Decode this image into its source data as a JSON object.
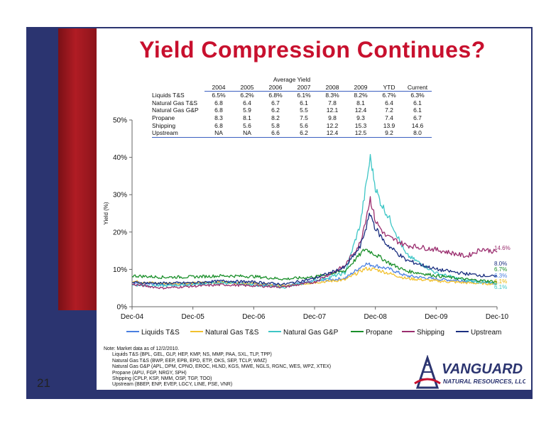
{
  "slide": {
    "title": "Yield Compression Continues?",
    "page_number": "21"
  },
  "colors": {
    "frame": "#2b3470",
    "title": "#c8102e",
    "accent_bar": "#b01c24"
  },
  "yield_table": {
    "caption": "Average Yield",
    "columns": [
      "2004",
      "2005",
      "2006",
      "2007",
      "2008",
      "2009",
      "YTD",
      "Current"
    ],
    "rows": [
      {
        "label": "Liquids T&S",
        "values": [
          "6.5%",
          "6.2%",
          "6.8%",
          "6.1%",
          "8.3%",
          "8.2%",
          "6.7%",
          "6.3%"
        ]
      },
      {
        "label": "Natural  Gas T&S",
        "values": [
          "6.8",
          "6.4",
          "6.7",
          "6.1",
          "7.8",
          "8.1",
          "6.4",
          "6.1"
        ]
      },
      {
        "label": "Natural Gas G&P",
        "values": [
          "6.8",
          "5.9",
          "6.2",
          "5.5",
          "12.1",
          "12.4",
          "7.2",
          "6.1"
        ]
      },
      {
        "label": "Propane",
        "values": [
          "8.3",
          "8.1",
          "8.2",
          "7.5",
          "9.8",
          "9.3",
          "7.4",
          "6.7"
        ]
      },
      {
        "label": "Shipping",
        "values": [
          "6.8",
          "5.6",
          "5.8",
          "5.6",
          "12.2",
          "15.3",
          "13.9",
          "14.6"
        ]
      },
      {
        "label": "Upstream",
        "values": [
          "NA",
          "NA",
          "6.6",
          "6.2",
          "12.4",
          "12.5",
          "9.2",
          "8.0"
        ]
      }
    ]
  },
  "chart_data": {
    "type": "line",
    "ylabel": "Yield (%)",
    "xlabel": "",
    "ylim": [
      0,
      50
    ],
    "yticks": [
      "0%",
      "10%",
      "20%",
      "30%",
      "40%",
      "50%"
    ],
    "xlim": [
      "2004-12",
      "2010-12"
    ],
    "xticks": [
      "Dec-04",
      "Dec-05",
      "Dec-06",
      "Dec-07",
      "Dec-08",
      "Dec-09",
      "Dec-10"
    ],
    "grid": false,
    "legend_position": "bottom",
    "end_labels": [
      "14.6%",
      "8.0%",
      "6.7%",
      "6.3%",
      "6.1%",
      "6.1%"
    ],
    "series": [
      {
        "name": "Liquids T&S",
        "color": "#4a7fe0",
        "end_label_color": "#4a7fe0",
        "points": [
          [
            "2004-12",
            6.5
          ],
          [
            "2005-06",
            6.0
          ],
          [
            "2005-12",
            6.2
          ],
          [
            "2006-06",
            6.6
          ],
          [
            "2006-12",
            6.3
          ],
          [
            "2007-06",
            5.7
          ],
          [
            "2007-12",
            6.8
          ],
          [
            "2008-06",
            7.6
          ],
          [
            "2008-10",
            11.5
          ],
          [
            "2008-12",
            11.0
          ],
          [
            "2009-03",
            10.0
          ],
          [
            "2009-06",
            8.3
          ],
          [
            "2009-12",
            7.4
          ],
          [
            "2010-06",
            6.9
          ],
          [
            "2010-12",
            6.3
          ]
        ]
      },
      {
        "name": "Natural  Gas T&S",
        "color": "#f2c12e",
        "end_label_color": "#e8b400",
        "points": [
          [
            "2004-12",
            6.8
          ],
          [
            "2005-06",
            6.2
          ],
          [
            "2005-12",
            6.3
          ],
          [
            "2006-06",
            6.6
          ],
          [
            "2006-12",
            6.2
          ],
          [
            "2007-06",
            5.5
          ],
          [
            "2007-12",
            6.5
          ],
          [
            "2008-06",
            7.2
          ],
          [
            "2008-10",
            10.2
          ],
          [
            "2008-12",
            10.0
          ],
          [
            "2009-03",
            8.8
          ],
          [
            "2009-06",
            7.6
          ],
          [
            "2009-12",
            6.9
          ],
          [
            "2010-06",
            6.4
          ],
          [
            "2010-12",
            6.1
          ]
        ]
      },
      {
        "name": "Natural Gas G&P",
        "color": "#3ec6c6",
        "end_label_color": "#3ec6c6",
        "points": [
          [
            "2004-12",
            5.8
          ],
          [
            "2005-06",
            5.6
          ],
          [
            "2005-12",
            5.9
          ],
          [
            "2006-06",
            6.4
          ],
          [
            "2006-12",
            5.8
          ],
          [
            "2007-06",
            5.2
          ],
          [
            "2007-12",
            6.9
          ],
          [
            "2008-06",
            9.0
          ],
          [
            "2008-09",
            22.0
          ],
          [
            "2008-11",
            40.0
          ],
          [
            "2008-12",
            32.0
          ],
          [
            "2009-01",
            28.0
          ],
          [
            "2009-03",
            23.0
          ],
          [
            "2009-06",
            14.0
          ],
          [
            "2009-12",
            9.0
          ],
          [
            "2010-06",
            7.0
          ],
          [
            "2010-12",
            6.1
          ]
        ]
      },
      {
        "name": "Propane",
        "color": "#1a8f2a",
        "end_label_color": "#1a8f2a",
        "points": [
          [
            "2004-12",
            8.3
          ],
          [
            "2005-06",
            7.9
          ],
          [
            "2005-12",
            8.0
          ],
          [
            "2006-06",
            8.3
          ],
          [
            "2006-12",
            8.1
          ],
          [
            "2007-06",
            7.4
          ],
          [
            "2007-12",
            8.0
          ],
          [
            "2008-06",
            9.6
          ],
          [
            "2008-10",
            15.5
          ],
          [
            "2008-12",
            14.0
          ],
          [
            "2009-03",
            11.5
          ],
          [
            "2009-06",
            9.6
          ],
          [
            "2009-12",
            8.3
          ],
          [
            "2010-06",
            7.3
          ],
          [
            "2010-12",
            6.7
          ]
        ]
      },
      {
        "name": "Shipping",
        "color": "#9a2d6e",
        "end_label_color": "#9a2d6e",
        "points": [
          [
            "2004-12",
            6.0
          ],
          [
            "2005-06",
            5.0
          ],
          [
            "2005-12",
            5.5
          ],
          [
            "2006-06",
            5.9
          ],
          [
            "2006-12",
            5.6
          ],
          [
            "2007-06",
            5.3
          ],
          [
            "2007-12",
            6.6
          ],
          [
            "2008-06",
            11.0
          ],
          [
            "2008-09",
            17.0
          ],
          [
            "2008-11",
            29.0
          ],
          [
            "2008-12",
            23.0
          ],
          [
            "2009-02",
            19.0
          ],
          [
            "2009-06",
            16.5
          ],
          [
            "2009-12",
            15.3
          ],
          [
            "2010-06",
            13.5
          ],
          [
            "2010-09",
            15.5
          ],
          [
            "2010-12",
            14.6
          ]
        ]
      },
      {
        "name": "Upstream",
        "color": "#1b2f80",
        "end_label_color": "#1b2f80",
        "points": [
          [
            "2004-12",
            6.5
          ],
          [
            "2005-06",
            6.3
          ],
          [
            "2005-12",
            6.4
          ],
          [
            "2006-06",
            6.9
          ],
          [
            "2006-12",
            6.6
          ],
          [
            "2007-06",
            6.0
          ],
          [
            "2007-12",
            7.6
          ],
          [
            "2008-06",
            10.5
          ],
          [
            "2008-09",
            16.0
          ],
          [
            "2008-11",
            25.0
          ],
          [
            "2008-12",
            21.0
          ],
          [
            "2009-02",
            17.0
          ],
          [
            "2009-06",
            12.5
          ],
          [
            "2009-12",
            10.0
          ],
          [
            "2010-06",
            8.8
          ],
          [
            "2010-12",
            8.0
          ]
        ]
      }
    ]
  },
  "notes": {
    "header": "Note: Market data as of 12/2/2010.",
    "lines": [
      "Liquids T&S (BPL, GEL, GLP, HEP, KMP, NS, MMP, PAA, SXL, TLP, TPP)",
      "Natural Gas T&S (BWP, EEP, EPB, EPD, ETP, OKS, SEP, TCLP, WMZ)",
      "Natural Gas G&P (APL, DPM, CPNO, EROC, HLND, KGS, MWE, NGLS, RGNC, WES, WPZ, XTEX)",
      "Propane (APU, FGP, NRGY, SPH)",
      "Shipping (CPLP, KSP, NMM, OSP, TGP, TOO)",
      "Upstream (BBEP, ENP, EVEP, LGCY, LINE, PSE, VNR)"
    ]
  },
  "logo": {
    "name": "VANGUARD",
    "sub": "NATURAL RESOURCES, LLC",
    "icon": "oil-derrick-icon"
  }
}
